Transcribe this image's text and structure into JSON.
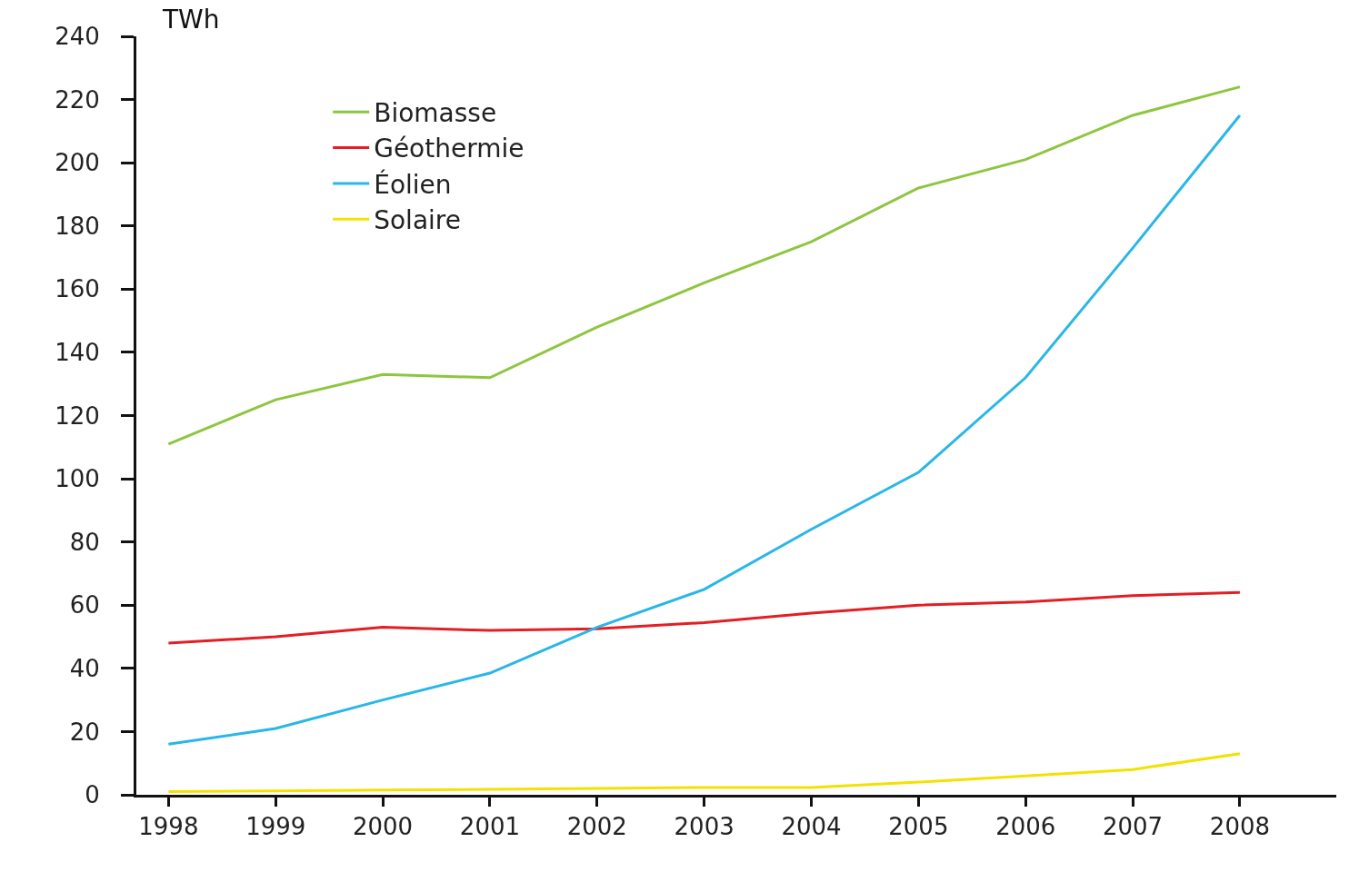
{
  "chart_data": {
    "type": "line",
    "ylabel": "TWh",
    "x": [
      1998,
      1999,
      2000,
      2001,
      2002,
      2003,
      2004,
      2005,
      2006,
      2007,
      2008
    ],
    "xlim": [
      1997.7,
      2008.9
    ],
    "xticks": [
      1998,
      1999,
      2000,
      2001,
      2002,
      2003,
      2004,
      2005,
      2006,
      2007,
      2008
    ],
    "ylim": [
      0,
      240
    ],
    "yticks": [
      0,
      20,
      40,
      60,
      80,
      100,
      120,
      140,
      160,
      180,
      200,
      220,
      240
    ],
    "grid": false,
    "legend": "top left",
    "marker": "none",
    "line_style": "solid",
    "series": [
      {
        "name": "Biomasse",
        "color": "#8dc63f",
        "values": [
          111,
          125,
          133,
          132,
          148,
          162,
          175,
          192,
          201,
          215,
          224
        ]
      },
      {
        "name": "Géothermie",
        "color": "#e31e24",
        "values": [
          48,
          50,
          53,
          52,
          52.5,
          54.5,
          57.5,
          60,
          61,
          63,
          64
        ]
      },
      {
        "name": "Éolien",
        "color": "#29b6e8",
        "values": [
          16,
          21,
          30,
          38.5,
          53,
          65,
          84,
          102,
          132,
          173,
          215
        ]
      },
      {
        "name": "Solaire",
        "color": "#f2e200",
        "values": [
          1,
          1.2,
          1.5,
          1.7,
          2,
          2.3,
          2.3,
          4,
          6,
          8,
          13
        ]
      }
    ]
  }
}
